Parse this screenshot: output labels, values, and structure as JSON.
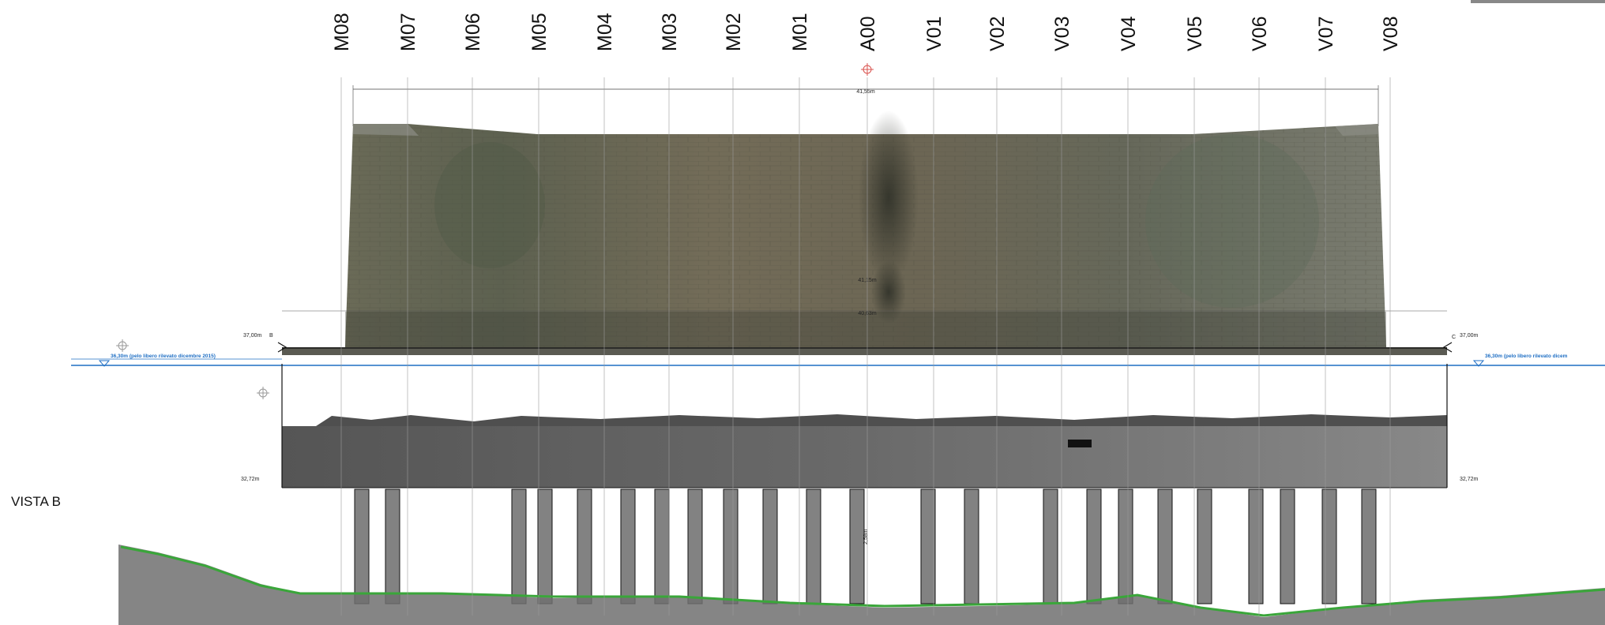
{
  "axes": [
    "M08",
    "M07",
    "M06",
    "M05",
    "M04",
    "M03",
    "M02",
    "M01",
    "A00",
    "V01",
    "V02",
    "V03",
    "V04",
    "V05",
    "V06",
    "V07",
    "V08"
  ],
  "view_label": "VISTA B",
  "dims": {
    "overall_width": "41,55m",
    "inner_width_1": "41,15m",
    "inner_width_2": "40,63m",
    "dim_2": "2,58m"
  },
  "levels": {
    "left_top": "37,00m",
    "left_top_point": "B",
    "right_top": "37,00m",
    "right_top_point": "C",
    "left_bottom": "32,72m",
    "right_bottom": "32,72m"
  },
  "water": {
    "left_label": "36,30m (pelo libero rilevato dicembre 2015)",
    "right_label": "36,30m (pelo libero rilevato dicem"
  },
  "colors": {
    "wall": "#6d6a58",
    "cloud": "#6b6b6b",
    "ground_line": "#3aa63a",
    "water_line": "#1f6fc4"
  }
}
